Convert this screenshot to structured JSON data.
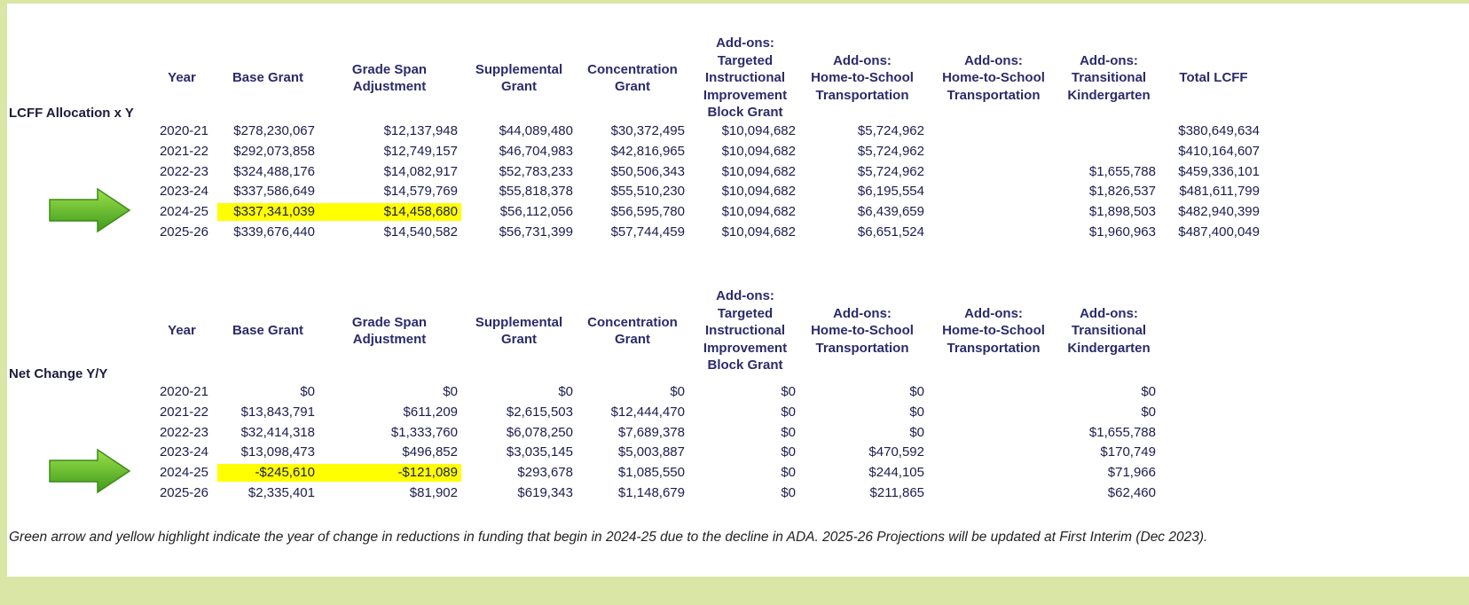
{
  "tables": [
    {
      "label": "LCFF Allocation x Y",
      "headers": [
        [
          "Year"
        ],
        [
          "Base Grant"
        ],
        [
          "Grade Span",
          "Adjustment"
        ],
        [
          "Supplemental",
          "Grant"
        ],
        [
          "Concentration",
          "Grant"
        ],
        [
          "Add-ons:",
          "Targeted",
          "Instructional",
          "Improvement",
          "Block Grant"
        ],
        [
          "Add-ons:",
          "Home-to-School",
          "Transportation"
        ],
        [
          "Add-ons:",
          "Home-to-School",
          "Transportation"
        ],
        [
          "Add-ons:",
          "Transitional",
          "Kindergarten"
        ],
        [
          "Total LCFF"
        ]
      ],
      "rows": [
        [
          "2020-21",
          "$278,230,067",
          "$12,137,948",
          "$44,089,480",
          "$30,372,495",
          "$10,094,682",
          "$5,724,962",
          null,
          null,
          "$380,649,634"
        ],
        [
          "2021-22",
          "$292,073,858",
          "$12,749,157",
          "$46,704,983",
          "$42,816,965",
          "$10,094,682",
          "$5,724,962",
          null,
          null,
          "$410,164,607"
        ],
        [
          "2022-23",
          "$324,488,176",
          "$14,082,917",
          "$52,783,233",
          "$50,506,343",
          "$10,094,682",
          "$5,724,962",
          null,
          "$1,655,788",
          "$459,336,101"
        ],
        [
          "2023-24",
          "$337,586,649",
          "$14,579,769",
          "$55,818,378",
          "$55,510,230",
          "$10,094,682",
          "$6,195,554",
          null,
          "$1,826,537",
          "$481,611,799"
        ],
        [
          "2024-25",
          "$337,341,039",
          "$14,458,680",
          "$56,112,056",
          "$56,595,780",
          "$10,094,682",
          "$6,439,659",
          null,
          "$1,898,503",
          "$482,940,399"
        ],
        [
          "2025-26",
          "$339,676,440",
          "$14,540,582",
          "$56,731,399",
          "$57,744,459",
          "$10,094,682",
          "$6,651,524",
          null,
          "$1,960,963",
          "$487,400,049"
        ]
      ],
      "highlight": {
        "row": 4,
        "columns": [
          1,
          2
        ],
        "color": "#ffff00"
      }
    },
    {
      "label": "Net Change Y/Y",
      "headers": [
        [
          "Year"
        ],
        [
          "Base Grant"
        ],
        [
          "Grade Span",
          "Adjustment"
        ],
        [
          "Supplemental",
          "Grant"
        ],
        [
          "Concentration",
          "Grant"
        ],
        [
          "Add-ons:",
          "Targeted",
          "Instructional",
          "Improvement",
          "Block Grant"
        ],
        [
          "Add-ons:",
          "Home-to-School",
          "Transportation"
        ],
        [
          "Add-ons:",
          "Home-to-School",
          "Transportation"
        ],
        [
          "Add-ons:",
          "Transitional",
          "Kindergarten"
        ]
      ],
      "rows": [
        [
          "2020-21",
          "$0",
          "$0",
          "$0",
          "$0",
          "$0",
          "$0",
          null,
          "$0"
        ],
        [
          "2021-22",
          "$13,843,791",
          "$611,209",
          "$2,615,503",
          "$12,444,470",
          "$0",
          "$0",
          null,
          "$0"
        ],
        [
          "2022-23",
          "$32,414,318",
          "$1,333,760",
          "$6,078,250",
          "$7,689,378",
          "$0",
          "$0",
          null,
          "$1,655,788"
        ],
        [
          "2023-24",
          "$13,098,473",
          "$496,852",
          "$3,035,145",
          "$5,003,887",
          "$0",
          "$470,592",
          null,
          "$170,749"
        ],
        [
          "2024-25",
          "-$245,610",
          "-$121,089",
          "$293,678",
          "$1,085,550",
          "$0",
          "$244,105",
          null,
          "$71,966"
        ],
        [
          "2025-26",
          "$2,335,401",
          "$81,902",
          "$619,343",
          "$1,148,679",
          "$0",
          "$211,865",
          null,
          "$62,460"
        ]
      ],
      "highlight": {
        "row": 4,
        "columns": [
          1,
          2
        ],
        "color": "#ffff00"
      }
    }
  ],
  "footnote": "Green arrow and yellow highlight indicate the year of change in reductions in funding that begin in 2024-25 due to the decline in ADA. 2025-26 Projections will be updated at First Interim (Dec 2023)."
}
